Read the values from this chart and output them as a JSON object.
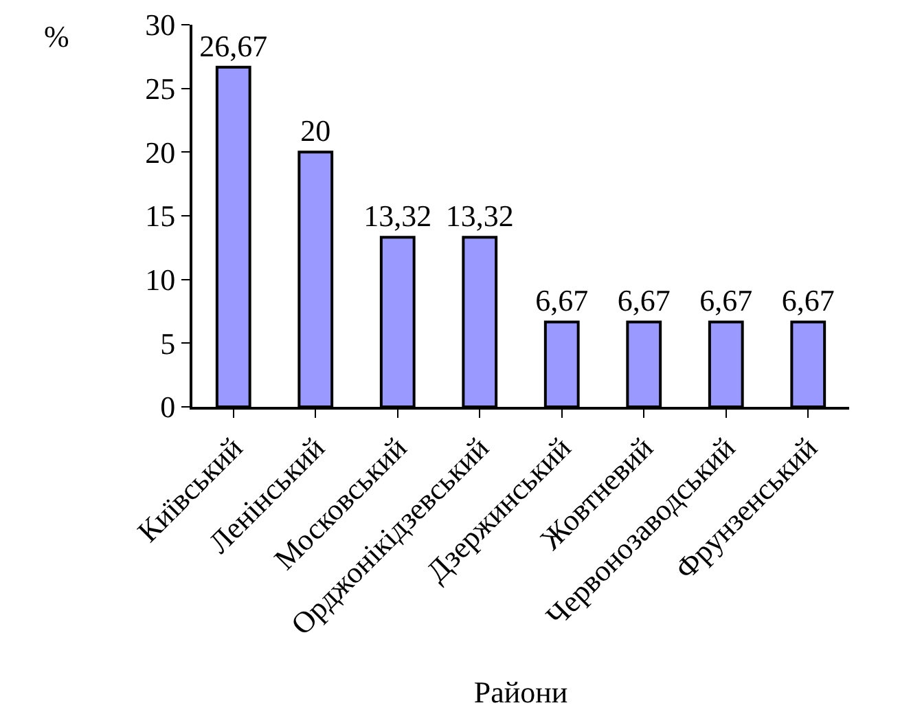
{
  "chart_data": {
    "type": "bar",
    "xlabel": "Райони",
    "ylabel": "%",
    "categories": [
      "Київський",
      "Ленінський",
      "Московський",
      "Орджонікідзевський",
      "Дзержинський",
      "Жовтневий",
      "Червонозаводський",
      "Фрунзенський"
    ],
    "values": [
      26.67,
      20,
      13.32,
      13.32,
      6.67,
      6.67,
      6.67,
      6.67
    ],
    "value_labels": [
      "26,67",
      "20",
      "13,32",
      "13,32",
      "6,67",
      "6,67",
      "6,67",
      "6,67"
    ],
    "color": "#9999ff",
    "ylim": [
      0,
      30
    ],
    "yticks": [
      0,
      5,
      10,
      15,
      20,
      25,
      30
    ],
    "grid": false
  }
}
